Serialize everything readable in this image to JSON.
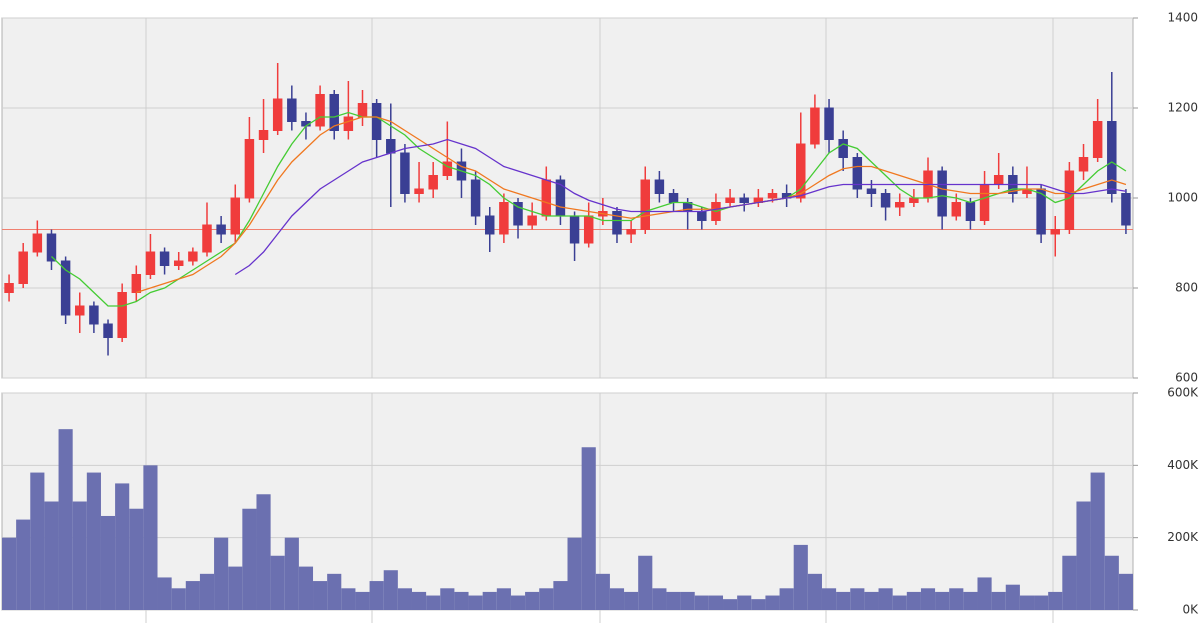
{
  "chart_data": [
    {
      "type": "candlestick",
      "ylim": [
        600,
        1400
      ],
      "yticks": [
        600,
        800,
        1000,
        1200,
        1400
      ],
      "grid": true,
      "up_color": "#f03c3c",
      "down_color": "#3a3f94",
      "reference_line": 930,
      "reference_color": "#f08070",
      "open": [
        790,
        810,
        880,
        920,
        860,
        740,
        760,
        720,
        690,
        790,
        830,
        880,
        850,
        860,
        880,
        940,
        920,
        1000,
        1130,
        1150,
        1220,
        1170,
        1160,
        1230,
        1150,
        1180,
        1210,
        1130,
        1100,
        1010,
        1020,
        1050,
        1080,
        1040,
        960,
        920,
        990,
        940,
        960,
        1040,
        960,
        900,
        960,
        970,
        920,
        930,
        1040,
        1010,
        990,
        970,
        950,
        990,
        1000,
        990,
        1000,
        1010,
        1000,
        1120,
        1200,
        1130,
        1090,
        1020,
        1010,
        980,
        990,
        1000,
        1060,
        960,
        990,
        950,
        1030,
        1050,
        1010,
        1020,
        920,
        930,
        1060,
        1090,
        1170,
        1010
      ],
      "high": [
        830,
        900,
        950,
        930,
        870,
        790,
        770,
        730,
        810,
        850,
        920,
        890,
        880,
        890,
        990,
        960,
        1030,
        1180,
        1220,
        1300,
        1250,
        1190,
        1250,
        1240,
        1260,
        1240,
        1220,
        1210,
        1120,
        1080,
        1080,
        1170,
        1110,
        1060,
        980,
        1010,
        1000,
        990,
        1070,
        1050,
        970,
        990,
        1000,
        980,
        950,
        1070,
        1060,
        1020,
        1000,
        980,
        1010,
        1020,
        1010,
        1020,
        1020,
        1030,
        1190,
        1230,
        1220,
        1150,
        1100,
        1040,
        1020,
        1010,
        1020,
        1090,
        1070,
        1010,
        1000,
        1060,
        1100,
        1070,
        1070,
        1030,
        960,
        1080,
        1120,
        1220,
        1280,
        1020
      ],
      "low": [
        770,
        800,
        870,
        840,
        720,
        700,
        700,
        650,
        680,
        770,
        820,
        830,
        840,
        850,
        870,
        900,
        900,
        990,
        1100,
        1140,
        1150,
        1130,
        1150,
        1130,
        1130,
        1160,
        1090,
        980,
        990,
        990,
        1000,
        1040,
        1000,
        940,
        880,
        900,
        910,
        930,
        950,
        940,
        860,
        890,
        940,
        900,
        900,
        920,
        990,
        970,
        930,
        930,
        940,
        980,
        970,
        980,
        990,
        980,
        990,
        1110,
        1100,
        1060,
        1000,
        980,
        950,
        960,
        980,
        990,
        930,
        950,
        930,
        940,
        1020,
        990,
        1000,
        900,
        870,
        920,
        1040,
        1080,
        990,
        920
      ],
      "close": [
        810,
        880,
        920,
        860,
        740,
        760,
        720,
        690,
        790,
        830,
        880,
        850,
        860,
        880,
        940,
        920,
        1000,
        1130,
        1150,
        1220,
        1170,
        1160,
        1230,
        1150,
        1180,
        1210,
        1130,
        1100,
        1010,
        1020,
        1050,
        1080,
        1040,
        960,
        920,
        990,
        940,
        960,
        1040,
        960,
        900,
        960,
        970,
        920,
        930,
        1040,
        1010,
        990,
        970,
        950,
        990,
        1000,
        990,
        1000,
        1010,
        1000,
        1120,
        1200,
        1130,
        1090,
        1020,
        1010,
        980,
        990,
        1000,
        1060,
        960,
        990,
        950,
        1030,
        1050,
        1010,
        1020,
        920,
        930,
        1060,
        1090,
        1170,
        1010,
        940
      ],
      "moving_averages": [
        {
          "color": "#44cc33",
          "values": [
            null,
            null,
            null,
            870,
            840,
            820,
            790,
            760,
            760,
            770,
            790,
            800,
            820,
            840,
            860,
            880,
            900,
            950,
            1010,
            1070,
            1120,
            1160,
            1180,
            1180,
            1190,
            1180,
            1180,
            1160,
            1140,
            1110,
            1090,
            1070,
            1060,
            1050,
            1030,
            1000,
            980,
            970,
            960,
            960,
            960,
            960,
            950,
            950,
            950,
            970,
            980,
            990,
            990,
            980,
            970,
            980,
            985,
            990,
            995,
            1000,
            1020,
            1060,
            1100,
            1120,
            1110,
            1080,
            1050,
            1020,
            1000,
            1000,
            1005,
            1000,
            990,
            1000,
            1010,
            1020,
            1020,
            1010,
            990,
            1000,
            1030,
            1060,
            1080,
            1060
          ]
        },
        {
          "color": "#f07820",
          "values": [
            null,
            null,
            null,
            null,
            null,
            null,
            null,
            null,
            null,
            790,
            800,
            810,
            820,
            830,
            850,
            870,
            900,
            940,
            990,
            1040,
            1080,
            1110,
            1140,
            1160,
            1170,
            1180,
            1180,
            1170,
            1150,
            1130,
            1110,
            1090,
            1070,
            1060,
            1040,
            1020,
            1010,
            1000,
            990,
            980,
            975,
            970,
            965,
            960,
            955,
            960,
            965,
            970,
            975,
            975,
            975,
            980,
            985,
            990,
            995,
            1000,
            1010,
            1030,
            1050,
            1065,
            1070,
            1070,
            1060,
            1050,
            1040,
            1030,
            1020,
            1015,
            1010,
            1010,
            1010,
            1015,
            1020,
            1020,
            1010,
            1010,
            1020,
            1030,
            1040,
            1030
          ]
        },
        {
          "color": "#6633cc",
          "values": [
            null,
            null,
            null,
            null,
            null,
            null,
            null,
            null,
            null,
            null,
            null,
            null,
            null,
            null,
            null,
            null,
            830,
            850,
            880,
            920,
            960,
            990,
            1020,
            1040,
            1060,
            1080,
            1090,
            1100,
            1110,
            1115,
            1120,
            1130,
            1120,
            1110,
            1090,
            1070,
            1060,
            1050,
            1040,
            1030,
            1010,
            995,
            985,
            975,
            970,
            970,
            970,
            970,
            970,
            970,
            975,
            980,
            985,
            990,
            995,
            1000,
            1005,
            1015,
            1025,
            1030,
            1030,
            1030,
            1030,
            1030,
            1030,
            1030,
            1030,
            1030,
            1030,
            1030,
            1030,
            1030,
            1030,
            1030,
            1020,
            1010,
            1010,
            1015,
            1020,
            1015
          ]
        }
      ]
    },
    {
      "type": "bar",
      "color": "#6b70b0",
      "ylim": [
        0,
        600000
      ],
      "grid": true,
      "yticks": [
        {
          "value": 0,
          "label": "0K"
        },
        {
          "value": 200000,
          "label": "200K"
        },
        {
          "value": 400000,
          "label": "400K"
        },
        {
          "value": 600000,
          "label": "600K"
        }
      ],
      "values": [
        200000,
        250000,
        380000,
        300000,
        500000,
        300000,
        380000,
        260000,
        350000,
        280000,
        400000,
        90000,
        60000,
        80000,
        100000,
        200000,
        120000,
        280000,
        320000,
        150000,
        200000,
        120000,
        80000,
        100000,
        60000,
        50000,
        80000,
        110000,
        60000,
        50000,
        40000,
        60000,
        50000,
        40000,
        50000,
        60000,
        40000,
        50000,
        60000,
        80000,
        200000,
        450000,
        100000,
        60000,
        50000,
        150000,
        60000,
        50000,
        50000,
        40000,
        40000,
        30000,
        40000,
        30000,
        40000,
        60000,
        180000,
        100000,
        60000,
        50000,
        60000,
        50000,
        60000,
        40000,
        50000,
        60000,
        50000,
        60000,
        50000,
        90000,
        50000,
        70000,
        40000,
        40000,
        50000,
        150000,
        300000,
        380000,
        150000,
        100000
      ]
    }
  ]
}
